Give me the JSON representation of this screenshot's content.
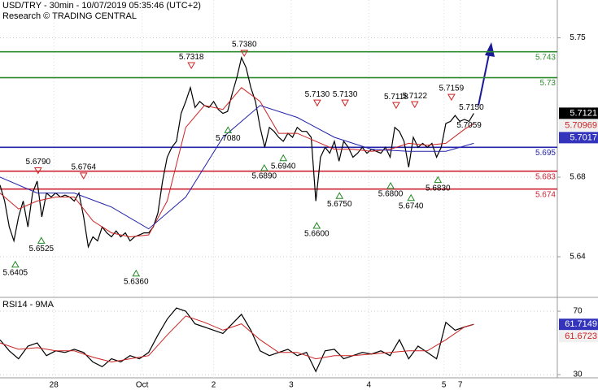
{
  "header": {
    "title": "USD/TRY - 30min - 10/07/2019 05:35:46 (UTC+2)",
    "subtitle": "Research © TRADING CENTRAL"
  },
  "chart_data": [
    {
      "type": "line",
      "xlim": [
        0,
        120
      ],
      "ylim": [
        5.62,
        5.769
      ],
      "yticks": [
        5.64,
        5.68,
        5.75
      ],
      "grid": true,
      "series": [
        {
          "name": "Price",
          "color": "#000000",
          "x": [
            0,
            1,
            2,
            3,
            4,
            5,
            6,
            7,
            8,
            9,
            10,
            11,
            12,
            13,
            14,
            15,
            16,
            17,
            18,
            19,
            20,
            21,
            22,
            23,
            24,
            25,
            26,
            27,
            28,
            29,
            30,
            31,
            32,
            33,
            34,
            35,
            36,
            37,
            38,
            39,
            40,
            41,
            42,
            43,
            44,
            45,
            46,
            47,
            48,
            49,
            50,
            51,
            52,
            53,
            54,
            55,
            56,
            57,
            58,
            59,
            60,
            61,
            62,
            63,
            64,
            65,
            66,
            67,
            68,
            69,
            70,
            71,
            72,
            73,
            74,
            75,
            76,
            77,
            78,
            79,
            80,
            81,
            82,
            83,
            84,
            85,
            86,
            87,
            88,
            89,
            90,
            91,
            92,
            93,
            94,
            95,
            96,
            97,
            98,
            99,
            100,
            101,
            102
          ],
          "values": [
            5.676,
            5.668,
            5.655,
            5.648,
            5.66,
            5.668,
            5.655,
            5.672,
            5.678,
            5.66,
            5.672,
            5.67,
            5.672,
            5.67,
            5.671,
            5.67,
            5.668,
            5.672,
            5.66,
            5.645,
            5.65,
            5.648,
            5.655,
            5.652,
            5.65,
            5.653,
            5.65,
            5.652,
            5.648,
            5.65,
            5.651,
            5.652,
            5.652,
            5.655,
            5.662,
            5.678,
            5.69,
            5.695,
            5.698,
            5.712,
            5.718,
            5.725,
            5.715,
            5.718,
            5.716,
            5.715,
            5.718,
            5.714,
            5.712,
            5.713,
            5.722,
            5.73,
            5.74,
            5.735,
            5.725,
            5.718,
            5.705,
            5.695,
            5.705,
            5.703,
            5.7,
            5.698,
            5.702,
            5.7,
            5.705,
            5.703,
            5.703,
            5.7,
            5.668,
            5.69,
            5.695,
            5.692,
            5.698,
            5.688,
            5.698,
            5.695,
            5.69,
            5.692,
            5.695,
            5.692,
            5.694,
            5.693,
            5.692,
            5.695,
            5.69,
            5.705,
            5.703,
            5.698,
            5.685,
            5.7,
            5.695,
            5.697,
            5.695,
            5.697,
            5.69,
            5.695,
            5.707,
            5.708,
            5.711,
            5.708,
            5.709,
            5.708,
            5.712
          ]
        },
        {
          "name": "MA fast",
          "color": "#cc2222",
          "x": [
            0,
            4,
            8,
            12,
            16,
            20,
            24,
            28,
            32,
            36,
            40,
            44,
            48,
            52,
            56,
            60,
            64,
            68,
            72,
            76,
            80,
            84,
            88,
            92,
            96,
            100,
            102
          ],
          "values": [
            5.672,
            5.664,
            5.668,
            5.67,
            5.67,
            5.658,
            5.652,
            5.65,
            5.651,
            5.668,
            5.705,
            5.716,
            5.714,
            5.725,
            5.718,
            5.702,
            5.702,
            5.698,
            5.694,
            5.694,
            5.693,
            5.694,
            5.697,
            5.696,
            5.697,
            5.704,
            5.707
          ]
        },
        {
          "name": "MA slow",
          "color": "#2222aa",
          "x": [
            0,
            8,
            16,
            24,
            32,
            40,
            48,
            56,
            64,
            72,
            80,
            88,
            96,
            102
          ],
          "values": [
            5.68,
            5.672,
            5.672,
            5.665,
            5.654,
            5.67,
            5.7,
            5.716,
            5.71,
            5.7,
            5.694,
            5.693,
            5.693,
            5.697
          ]
        }
      ],
      "levels": [
        {
          "value": 5.743,
          "color": "#2e8b2e"
        },
        {
          "value": 5.73,
          "color": "#2e8b2e"
        },
        {
          "value": 5.695,
          "color": "#2222aa"
        },
        {
          "value": 5.683,
          "color": "#cc2233"
        },
        {
          "value": 5.674,
          "color": "#cc2233"
        }
      ],
      "markers": [
        {
          "x": 52.6,
          "value": 5.738,
          "label": "5.7380",
          "marker": "down"
        },
        {
          "x": 41.2,
          "value": 5.7318,
          "marker": "down"
        },
        {
          "x": 49.1,
          "value": 5.708,
          "label": "5.7080",
          "marker": "up"
        },
        {
          "x": 68.3,
          "value": 5.713,
          "label": "5.7130",
          "marker": "down"
        },
        {
          "x": 74.3,
          "value": 5.713,
          "label": "5.7130",
          "marker": "down"
        },
        {
          "x": 56.9,
          "value": 5.689,
          "label": "5.6890",
          "marker": "up"
        },
        {
          "x": 61,
          "value": 5.694,
          "label": "5.6940",
          "marker": "up"
        },
        {
          "x": 8.2,
          "value": 5.679,
          "label": "5.6790",
          "marker": "down"
        },
        {
          "x": 18,
          "value": 5.6764,
          "marker": "down"
        },
        {
          "x": 8.9,
          "value": 5.6525,
          "marker": "up"
        },
        {
          "x": 3.3,
          "value": 5.6405,
          "marker": "up"
        },
        {
          "x": 29.3,
          "value": 5.636,
          "label": "5.6360",
          "marker": "up"
        },
        {
          "x": 68.2,
          "value": 5.66,
          "label": "5.6600",
          "marker": "up"
        },
        {
          "x": 73.1,
          "value": 5.675,
          "label": "5.6750",
          "marker": "up"
        },
        {
          "x": 84.1,
          "value": 5.68,
          "label": "5.6800",
          "marker": "up"
        },
        {
          "x": 88.5,
          "value": 5.674,
          "label": "5.6740",
          "marker": "up"
        },
        {
          "x": 94.3,
          "value": 5.683,
          "label": "5.6830",
          "marker": "up"
        },
        {
          "x": 85.3,
          "value": 5.7118,
          "marker": "down"
        },
        {
          "x": 89.3,
          "value": 5.7122,
          "marker": "down"
        },
        {
          "x": 97.2,
          "value": 5.7159,
          "marker": "down"
        },
        {
          "x": 101.5,
          "value": 5.715,
          "label": "5.7150",
          "marker": "none"
        },
        {
          "x": 101,
          "value": 5.7059,
          "marker": "none"
        }
      ],
      "price_boxes": [
        {
          "value": 5.7121,
          "color": "#000000",
          "text_color": "#ffffff"
        },
        {
          "value": 5.70969,
          "color": "#f0f0f0",
          "text_color": "#cc2222"
        },
        {
          "value": 5.7017,
          "color": "#3333bb",
          "text_color": "#ffffff"
        }
      ]
    },
    {
      "type": "line",
      "title": "RSI14 - 9MA",
      "xlim": [
        0,
        120
      ],
      "ylim": [
        28,
        77.7
      ],
      "yticks": [
        30,
        70
      ],
      "grid": true,
      "xticks": [
        {
          "value": 11.6,
          "label": "28"
        },
        {
          "value": 30.6,
          "label": "Oct"
        },
        {
          "value": 46,
          "label": "2"
        },
        {
          "value": 62.7,
          "label": "3"
        },
        {
          "value": 79.4,
          "label": "4"
        },
        {
          "value": 95.6,
          "label": "5"
        },
        {
          "value": 99.1,
          "label": "7"
        }
      ],
      "series": [
        {
          "name": "RSI",
          "color": "#000000",
          "x": [
            0,
            2,
            4,
            6,
            8,
            10,
            12,
            14,
            16,
            18,
            20,
            22,
            24,
            26,
            28,
            30,
            32,
            34,
            36,
            38,
            40,
            42,
            44,
            46,
            48,
            50,
            52,
            54,
            56,
            58,
            60,
            62,
            64,
            66,
            68,
            70,
            72,
            74,
            76,
            78,
            80,
            82,
            84,
            86,
            88,
            90,
            92,
            94,
            96,
            98,
            100,
            102
          ],
          "values": [
            52,
            45,
            40,
            48,
            50,
            42,
            45,
            44,
            46,
            44,
            38,
            35,
            40,
            38,
            42,
            40,
            44,
            55,
            65,
            72,
            70,
            62,
            60,
            58,
            56,
            62,
            68,
            58,
            45,
            42,
            44,
            46,
            42,
            44,
            32,
            45,
            46,
            40,
            42,
            44,
            43,
            45,
            42,
            52,
            40,
            48,
            44,
            40,
            63,
            58,
            60,
            61.7149
          ]
        },
        {
          "name": "MA",
          "color": "#cc2222",
          "x": [
            0,
            4,
            8,
            12,
            16,
            20,
            24,
            28,
            32,
            36,
            40,
            44,
            48,
            52,
            56,
            60,
            64,
            68,
            72,
            76,
            80,
            84,
            88,
            92,
            96,
            100,
            102
          ],
          "values": [
            50,
            46,
            47,
            45,
            45,
            41,
            38,
            40,
            42,
            55,
            67,
            63,
            58,
            62,
            52,
            44,
            44,
            40,
            42,
            42,
            43,
            44,
            45,
            45,
            52,
            60,
            61.6723
          ]
        }
      ],
      "price_boxes": [
        {
          "value": 61.7149,
          "color": "#3333bb",
          "text_color": "#ffffff"
        },
        {
          "value": 61.6723,
          "color": "#f0f0f0",
          "text_color": "#cc2222"
        }
      ]
    }
  ]
}
